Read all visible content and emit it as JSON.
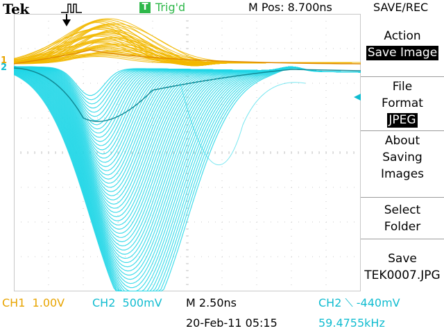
{
  "header": {
    "brand": "Tek",
    "trigger_badge": "T",
    "trigger_status": "Trig'd",
    "horizontal_position": "M Pos: 8.700ns",
    "menu_title": "SAVE/REC"
  },
  "side_menu": {
    "items": [
      {
        "title": "Action",
        "value": "Save Image"
      },
      {
        "title": "File\nFormat",
        "value": "JPEG"
      },
      {
        "title": "About\nSaving\nImages",
        "value": ""
      },
      {
        "title": "Select\nFolder",
        "value": ""
      },
      {
        "title": "Save\nTEK0007.JPG",
        "value": ""
      }
    ]
  },
  "markers": {
    "ch1_marker": "1",
    "ch2_marker": "2"
  },
  "status": {
    "ch1_scale": "CH1  1.00V",
    "ch2_scale": "CH2  500mV",
    "timebase": "M 2.50ns",
    "trigger_level": "CH2 ⟍ -440mV",
    "date_time": "20-Feb-11 05:15",
    "frequency": "59.4755kHz"
  },
  "colors": {
    "ch1": "#f2b800",
    "ch2": "#1ed6e6",
    "trigger": "#2fb84a",
    "grid": "#c8c8c8",
    "background": "#ffffff"
  }
}
